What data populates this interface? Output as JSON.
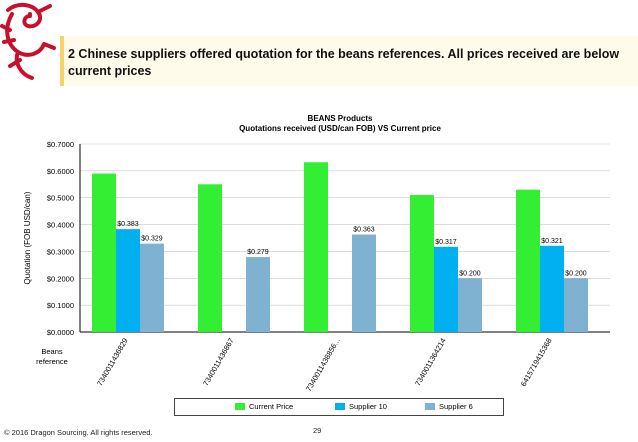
{
  "header": {
    "headline": "2 Chinese suppliers offered quotation for the beans references. All prices received are below current prices"
  },
  "footer": {
    "copyright": "© 2016 Dragon Sourcing. All rights reserved.",
    "page": "29"
  },
  "colors": {
    "current_price": "#33ee33",
    "supplier_10": "#00b0f0",
    "supplier_6": "#7fb2d0",
    "logo_red": "#c8102e"
  },
  "icons": {
    "logo": "dragon-logo-icon"
  },
  "chart_data": {
    "type": "bar",
    "title": "BEANS Products",
    "subtitle": "Quotations received (USD/can FOB) VS Current price",
    "xlabel": "Beans reference",
    "ylabel": "Quotation (FOB USD/can)",
    "ylim": [
      0,
      0.7
    ],
    "yticks": [
      "$0.0000",
      "$0.1000",
      "$0.2000",
      "$0.3000",
      "$0.4000",
      "$0.5000",
      "$0.6000",
      "$0.7000"
    ],
    "categories": [
      "7340011436829",
      "7340011436867",
      "7340011438856...",
      "7340011364214",
      "6415719415368"
    ],
    "series": [
      {
        "name": "Current Price",
        "values": [
          0.59,
          0.55,
          0.632,
          0.51,
          0.53
        ],
        "labels": [
          "",
          "",
          "",
          "",
          ""
        ]
      },
      {
        "name": "Supplier 10",
        "values": [
          0.383,
          null,
          null,
          0.317,
          0.321
        ],
        "labels": [
          "$0.383",
          "",
          "",
          "$0.317",
          "$0.321"
        ]
      },
      {
        "name": "Supplier 6",
        "values": [
          0.329,
          0.279,
          0.363,
          0.2,
          0.2
        ],
        "labels": [
          "$0.329",
          "$0.279",
          "$0.363",
          "$0.200",
          "$0.200"
        ]
      }
    ],
    "grid": true,
    "legend_position": "bottom"
  }
}
